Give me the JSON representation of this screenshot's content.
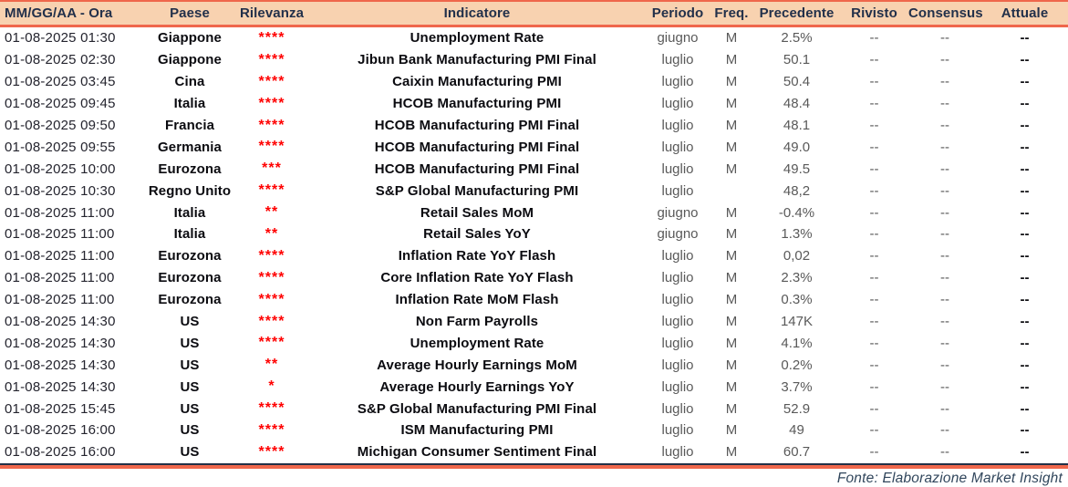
{
  "table": {
    "columns": [
      {
        "key": "date",
        "label": "MM/GG/AA - Ora"
      },
      {
        "key": "country",
        "label": "Paese"
      },
      {
        "key": "relevance",
        "label": "Rilevanza"
      },
      {
        "key": "indicator",
        "label": "Indicatore"
      },
      {
        "key": "period",
        "label": "Periodo"
      },
      {
        "key": "freq",
        "label": "Freq."
      },
      {
        "key": "previous",
        "label": "Precedente"
      },
      {
        "key": "revised",
        "label": "Rivisto"
      },
      {
        "key": "consensus",
        "label": "Consensus"
      },
      {
        "key": "actual",
        "label": "Attuale"
      }
    ],
    "rows": [
      {
        "date": "01-08-2025 01:30",
        "country": "Giappone",
        "relevance": "****",
        "indicator": "Unemployment Rate",
        "period": "giugno",
        "freq": "M",
        "previous": "2.5%",
        "revised": "--",
        "consensus": "--",
        "actual": "--"
      },
      {
        "date": "01-08-2025 02:30",
        "country": "Giappone",
        "relevance": "****",
        "indicator": "Jibun Bank Manufacturing PMI Final",
        "period": "luglio",
        "freq": "M",
        "previous": "50.1",
        "revised": "--",
        "consensus": "--",
        "actual": "--"
      },
      {
        "date": "01-08-2025 03:45",
        "country": "Cina",
        "relevance": "****",
        "indicator": "Caixin Manufacturing PMI",
        "period": "luglio",
        "freq": "M",
        "previous": "50.4",
        "revised": "--",
        "consensus": "--",
        "actual": "--"
      },
      {
        "date": "01-08-2025 09:45",
        "country": "Italia",
        "relevance": "****",
        "indicator": "HCOB Manufacturing PMI",
        "period": "luglio",
        "freq": "M",
        "previous": "48.4",
        "revised": "--",
        "consensus": "--",
        "actual": "--"
      },
      {
        "date": "01-08-2025 09:50",
        "country": "Francia",
        "relevance": "****",
        "indicator": "HCOB Manufacturing PMI Final",
        "period": "luglio",
        "freq": "M",
        "previous": "48.1",
        "revised": "--",
        "consensus": "--",
        "actual": "--"
      },
      {
        "date": "01-08-2025 09:55",
        "country": "Germania",
        "relevance": "****",
        "indicator": "HCOB Manufacturing PMI Final",
        "period": "luglio",
        "freq": "M",
        "previous": "49.0",
        "revised": "--",
        "consensus": "--",
        "actual": "--"
      },
      {
        "date": "01-08-2025 10:00",
        "country": "Eurozona",
        "relevance": "***",
        "indicator": "HCOB Manufacturing PMI Final",
        "period": "luglio",
        "freq": "M",
        "previous": "49.5",
        "revised": "--",
        "consensus": "--",
        "actual": "--"
      },
      {
        "date": "01-08-2025 10:30",
        "country": "Regno Unito",
        "relevance": "****",
        "indicator": "S&P Global Manufacturing PMI",
        "period": "luglio",
        "freq": "",
        "previous": "48,2",
        "revised": "--",
        "consensus": "--",
        "actual": "--"
      },
      {
        "date": "01-08-2025 11:00",
        "country": "Italia",
        "relevance": "**",
        "indicator": "Retail Sales MoM",
        "period": "giugno",
        "freq": "M",
        "previous": "-0.4%",
        "revised": "--",
        "consensus": "--",
        "actual": "--"
      },
      {
        "date": "01-08-2025 11:00",
        "country": "Italia",
        "relevance": "**",
        "indicator": "Retail Sales YoY",
        "period": "giugno",
        "freq": "M",
        "previous": "1.3%",
        "revised": "--",
        "consensus": "--",
        "actual": "--"
      },
      {
        "date": "01-08-2025 11:00",
        "country": "Eurozona",
        "relevance": "****",
        "indicator": "Inflation Rate YoY Flash",
        "period": "luglio",
        "freq": "M",
        "previous": "0,02",
        "revised": "--",
        "consensus": "--",
        "actual": "--"
      },
      {
        "date": "01-08-2025 11:00",
        "country": "Eurozona",
        "relevance": "****",
        "indicator": "Core Inflation Rate YoY Flash",
        "period": "luglio",
        "freq": "M",
        "previous": "2.3%",
        "revised": "--",
        "consensus": "--",
        "actual": "--"
      },
      {
        "date": "01-08-2025 11:00",
        "country": "Eurozona",
        "relevance": "****",
        "indicator": "Inflation Rate MoM Flash",
        "period": "luglio",
        "freq": "M",
        "previous": "0.3%",
        "revised": "--",
        "consensus": "--",
        "actual": "--"
      },
      {
        "date": "01-08-2025 14:30",
        "country": "US",
        "relevance": "****",
        "indicator": "Non Farm Payrolls",
        "period": "luglio",
        "freq": "M",
        "previous": "147K",
        "revised": "--",
        "consensus": "--",
        "actual": "--"
      },
      {
        "date": "01-08-2025 14:30",
        "country": "US",
        "relevance": "****",
        "indicator": "Unemployment Rate",
        "period": "luglio",
        "freq": "M",
        "previous": "4.1%",
        "revised": "--",
        "consensus": "--",
        "actual": "--"
      },
      {
        "date": "01-08-2025 14:30",
        "country": "US",
        "relevance": "**",
        "indicator": "Average Hourly Earnings MoM",
        "period": "luglio",
        "freq": "M",
        "previous": "0.2%",
        "revised": "--",
        "consensus": "--",
        "actual": "--"
      },
      {
        "date": "01-08-2025 14:30",
        "country": "US",
        "relevance": "*",
        "indicator": "Average Hourly Earnings YoY",
        "period": "luglio",
        "freq": "M",
        "previous": "3.7%",
        "revised": "--",
        "consensus": "--",
        "actual": "--"
      },
      {
        "date": "01-08-2025 15:45",
        "country": "US",
        "relevance": "****",
        "indicator": "S&P Global Manufacturing PMI Final",
        "period": "luglio",
        "freq": "M",
        "previous": "52.9",
        "revised": "--",
        "consensus": "--",
        "actual": "--"
      },
      {
        "date": "01-08-2025 16:00",
        "country": "US",
        "relevance": "****",
        "indicator": "ISM Manufacturing PMI",
        "period": "luglio",
        "freq": "M",
        "previous": "49",
        "revised": "--",
        "consensus": "--",
        "actual": "--"
      },
      {
        "date": "01-08-2025 16:00",
        "country": "US",
        "relevance": "****",
        "indicator": "Michigan Consumer Sentiment Final",
        "period": "luglio",
        "freq": "M",
        "previous": "60.7",
        "revised": "--",
        "consensus": "--",
        "actual": "--"
      }
    ]
  },
  "footer": {
    "source_label": "Fonte: Elaborazione Market Insight"
  },
  "colors": {
    "accent_coral": "#EF674C",
    "header_background": "#F8D2B0",
    "header_text": "#22304A",
    "relevance_red": "#FF0000",
    "muted_gray": "#595959",
    "dark_rule": "#223047",
    "footer_text": "#31465C"
  }
}
